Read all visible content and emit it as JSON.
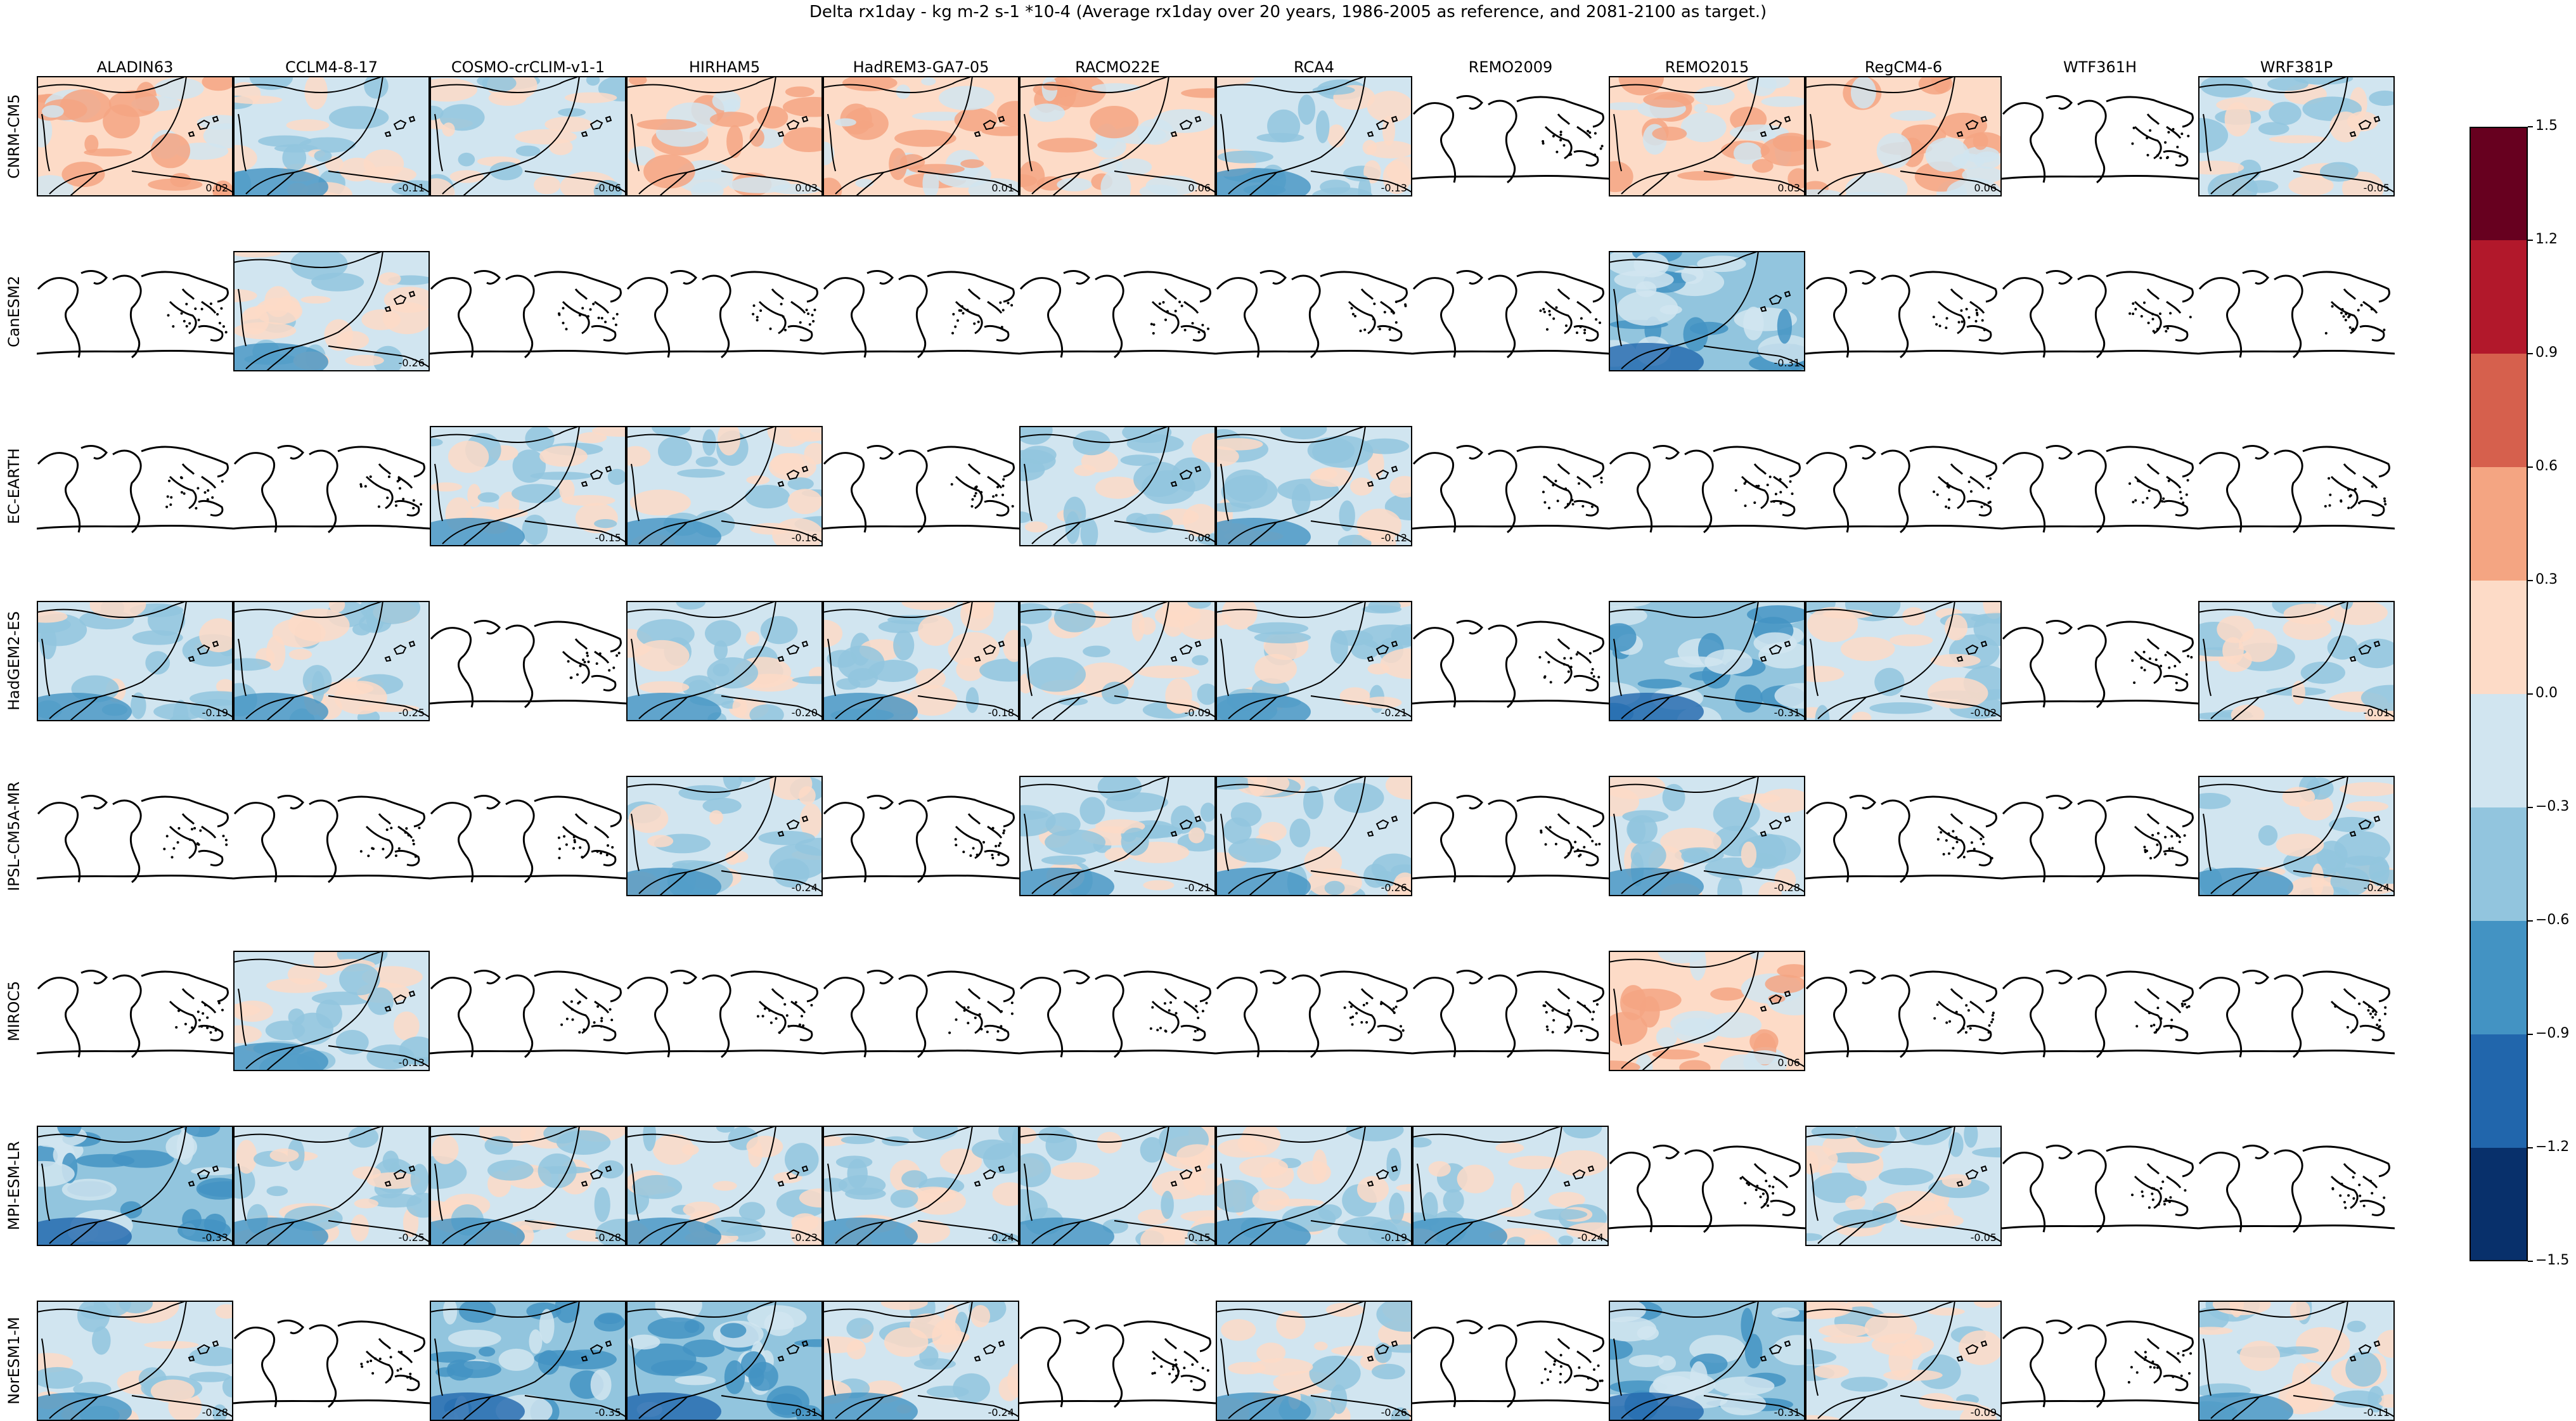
{
  "title": "Delta rx1day - kg m-2 s-1 *10-4 (Average rx1day over 20 years, 1986-2005 as reference, and 2081-2100 as target.)",
  "colors": {
    "bins": [
      "#08306b",
      "#2166ac",
      "#4393c3",
      "#92c5de",
      "#d1e5f0",
      "#fddbc7",
      "#f4a582",
      "#d6604d",
      "#b2182b",
      "#67001f"
    ]
  },
  "chart_data": {
    "type": "heatmap",
    "title": "Delta rx1day - kg m-2 s-1 *10-4 (Average rx1day over 20 years, 1986-2005 as reference, and 2081-2100 as target.)",
    "columns": [
      "ALADIN63",
      "CCLM4-8-17",
      "COSMO-crCLIM-v1-1",
      "HIRHAM5",
      "HadREM3-GA7-05",
      "RACMO22E",
      "RCA4",
      "REMO2009",
      "REMO2015",
      "RegCM4-6",
      "WTF361H",
      "WRF381P"
    ],
    "rows": [
      "CNRM-CM5",
      "CanESM2",
      "EC-EARTH",
      "HadGEM2-ES",
      "IPSL-CM5A-MR",
      "MIROC5",
      "MPI-ESM-LR",
      "NorESM1-M"
    ],
    "values": [
      [
        "0.02",
        "-0.11",
        "-0.06",
        "0.03",
        "0.01",
        "0.06",
        "-0.13",
        null,
        "0.03",
        "0.06",
        null,
        "-0.05"
      ],
      [
        null,
        "-0.26",
        null,
        null,
        null,
        null,
        null,
        null,
        "-0.31",
        null,
        null,
        null
      ],
      [
        null,
        null,
        "-0.15",
        "-0.16",
        null,
        "-0.08",
        "-0.12",
        null,
        null,
        null,
        null,
        null
      ],
      [
        "-0.19",
        "-0.25",
        null,
        "-0.20",
        "-0.18",
        "-0.09",
        "-0.21",
        null,
        "-0.31",
        "-0.02",
        null,
        "-0.01"
      ],
      [
        null,
        null,
        null,
        "-0.24",
        null,
        "-0.21",
        "-0.26",
        null,
        "-0.28",
        null,
        null,
        "-0.24"
      ],
      [
        null,
        "-0.13",
        null,
        null,
        null,
        null,
        null,
        null,
        "0.06",
        null,
        null,
        null
      ],
      [
        "-0.33",
        "-0.25",
        "-0.28",
        "-0.23",
        "-0.24",
        "-0.15",
        "-0.19",
        "-0.24",
        null,
        "-0.05",
        null,
        null
      ],
      [
        "-0.28",
        null,
        "-0.35",
        "-0.31",
        "-0.24",
        null,
        "-0.26",
        null,
        "-0.31",
        "-0.09",
        null,
        "-0.11"
      ]
    ],
    "colorbar": {
      "ticks": [
        "1.5",
        "1.2",
        "0.9",
        "0.6",
        "0.3",
        "0.0",
        "−0.3",
        "−0.6",
        "−0.9",
        "−1.2",
        "−1.5"
      ],
      "range": [
        -1.5,
        1.5
      ]
    }
  }
}
